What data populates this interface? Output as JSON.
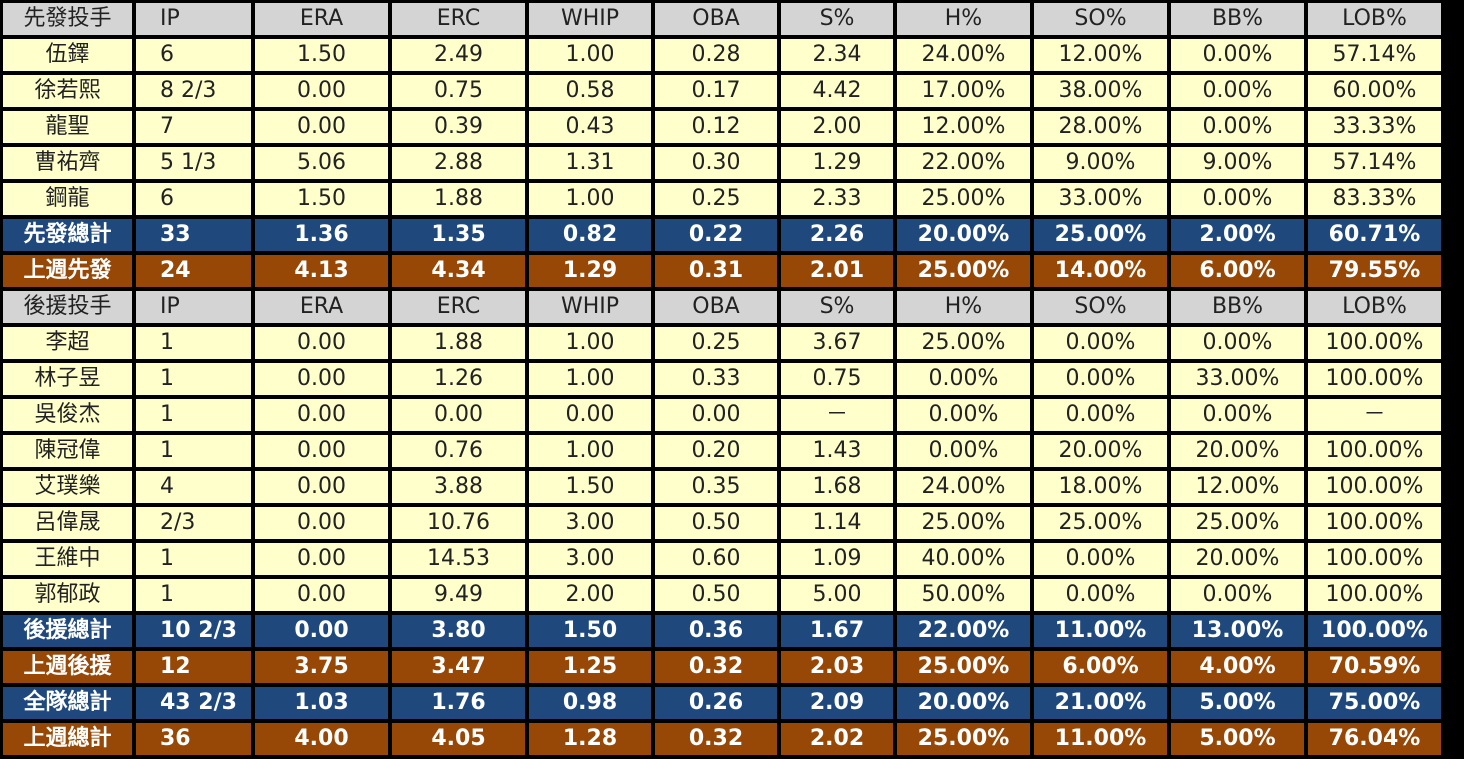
{
  "starters": {
    "header": [
      "先發投手",
      "IP",
      "ERA",
      "ERC",
      "WHIP",
      "OBA",
      "S%",
      "H%",
      "SO%",
      "BB%",
      "LOB%"
    ],
    "rows": [
      [
        "伍鐸",
        "6",
        "1.50",
        "2.49",
        "1.00",
        "0.28",
        "2.34",
        "24.00%",
        "12.00%",
        "0.00%",
        "57.14%"
      ],
      [
        "徐若熙",
        "8 2/3",
        "0.00",
        "0.75",
        "0.58",
        "0.17",
        "4.42",
        "17.00%",
        "38.00%",
        "0.00%",
        "60.00%"
      ],
      [
        "龍聖",
        "7",
        "0.00",
        "0.39",
        "0.43",
        "0.12",
        "2.00",
        "12.00%",
        "28.00%",
        "0.00%",
        "33.33%"
      ],
      [
        "曹祐齊",
        "5 1/3",
        "5.06",
        "2.88",
        "1.31",
        "0.30",
        "1.29",
        "22.00%",
        "9.00%",
        "9.00%",
        "57.14%"
      ],
      [
        "鋼龍",
        "6",
        "1.50",
        "1.88",
        "1.00",
        "0.25",
        "2.33",
        "25.00%",
        "33.00%",
        "0.00%",
        "83.33%"
      ]
    ],
    "total": [
      "先發總計",
      "33",
      "1.36",
      "1.35",
      "0.82",
      "0.22",
      "2.26",
      "20.00%",
      "25.00%",
      "2.00%",
      "60.71%"
    ],
    "last_week": [
      "上週先發",
      "24",
      "4.13",
      "4.34",
      "1.29",
      "0.31",
      "2.01",
      "25.00%",
      "14.00%",
      "6.00%",
      "79.55%"
    ]
  },
  "relievers": {
    "header": [
      "後援投手",
      "IP",
      "ERA",
      "ERC",
      "WHIP",
      "OBA",
      "S%",
      "H%",
      "SO%",
      "BB%",
      "LOB%"
    ],
    "rows": [
      [
        "李超",
        "1",
        "0.00",
        "1.88",
        "1.00",
        "0.25",
        "3.67",
        "25.00%",
        "0.00%",
        "0.00%",
        "100.00%"
      ],
      [
        "林子昱",
        "1",
        "0.00",
        "1.26",
        "1.00",
        "0.33",
        "0.75",
        "0.00%",
        "0.00%",
        "33.00%",
        "100.00%"
      ],
      [
        "吳俊杰",
        "1",
        "0.00",
        "0.00",
        "0.00",
        "0.00",
        "－",
        "0.00%",
        "0.00%",
        "0.00%",
        "－"
      ],
      [
        "陳冠偉",
        "1",
        "0.00",
        "0.76",
        "1.00",
        "0.20",
        "1.43",
        "0.00%",
        "20.00%",
        "20.00%",
        "100.00%"
      ],
      [
        "艾璞樂",
        "4",
        "0.00",
        "3.88",
        "1.50",
        "0.35",
        "1.68",
        "24.00%",
        "18.00%",
        "12.00%",
        "100.00%"
      ],
      [
        "呂偉晟",
        "2/3",
        "0.00",
        "10.76",
        "3.00",
        "0.50",
        "1.14",
        "25.00%",
        "25.00%",
        "25.00%",
        "100.00%"
      ],
      [
        "王維中",
        "1",
        "0.00",
        "14.53",
        "3.00",
        "0.60",
        "1.09",
        "40.00%",
        "0.00%",
        "20.00%",
        "100.00%"
      ],
      [
        "郭郁政",
        "1",
        "0.00",
        "9.49",
        "2.00",
        "0.50",
        "5.00",
        "50.00%",
        "0.00%",
        "0.00%",
        "100.00%"
      ]
    ],
    "total": [
      "後援總計",
      "10 2/3",
      "0.00",
      "3.80",
      "1.50",
      "0.36",
      "1.67",
      "22.00%",
      "11.00%",
      "13.00%",
      "100.00%"
    ],
    "last_week": [
      "上週後援",
      "12",
      "3.75",
      "3.47",
      "1.25",
      "0.32",
      "2.03",
      "25.00%",
      "6.00%",
      "4.00%",
      "70.59%"
    ]
  },
  "team": {
    "total": [
      "全隊總計",
      "43 2/3",
      "1.03",
      "1.76",
      "0.98",
      "0.26",
      "2.09",
      "20.00%",
      "21.00%",
      "5.00%",
      "75.00%"
    ],
    "last_week": [
      "上週總計",
      "36",
      "4.00",
      "4.05",
      "1.28",
      "0.32",
      "2.02",
      "25.00%",
      "11.00%",
      "5.00%",
      "76.04%"
    ]
  },
  "colors": {
    "header_bg": "#d4d4d4",
    "data_bg": "#ffffcc",
    "total_bg": "#1f497d",
    "last_week_bg": "#974806",
    "border": "#000000"
  }
}
